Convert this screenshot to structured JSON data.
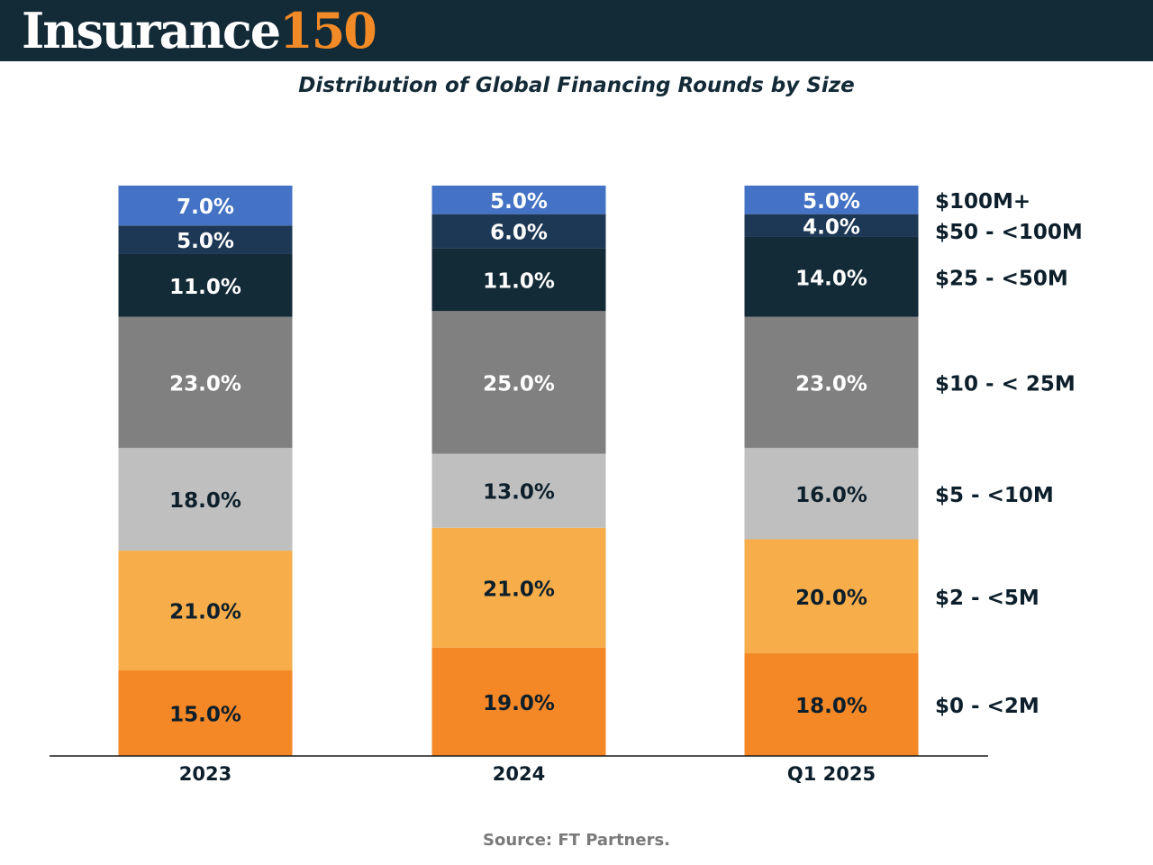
{
  "brand": {
    "name": "Insurance",
    "number": "150"
  },
  "source": "Source: FT Partners.",
  "chart_data": {
    "type": "bar",
    "stacked": true,
    "title": "Distribution of Global Financing Rounds by Size",
    "categories": [
      "2023",
      "2024",
      "Q1 2025"
    ],
    "ylim": [
      0,
      100
    ],
    "grid": false,
    "legend_position": "right",
    "series": [
      {
        "name": "$0 - <2M",
        "color": "#f48726",
        "label_color": "#0d1f2b",
        "values": [
          15,
          19,
          18
        ],
        "labels": [
          "15.0%",
          "19.0%",
          "18.0%"
        ]
      },
      {
        "name": "$2 - <5M",
        "color": "#f6ad4a",
        "label_color": "#0d1f2b",
        "values": [
          21,
          21,
          20
        ],
        "labels": [
          "21.0%",
          "21.0%",
          "20.0%"
        ]
      },
      {
        "name": "$5 - <10M",
        "color": "#bfbfbf",
        "label_color": "#0d1f2b",
        "values": [
          18,
          13,
          16
        ],
        "labels": [
          "18.0%",
          "13.0%",
          "16.0%"
        ]
      },
      {
        "name": "$10 - < 25M",
        "color": "#808080",
        "label_color": "#ffffff",
        "values": [
          23,
          25,
          23
        ],
        "labels": [
          "23.0%",
          "25.0%",
          "23.0%"
        ]
      },
      {
        "name": "$25 - <50M",
        "color": "#132a37",
        "label_color": "#ffffff",
        "values": [
          11,
          11,
          14
        ],
        "labels": [
          "11.0%",
          "11.0%",
          "14.0%"
        ]
      },
      {
        "name": "$50 - <100M",
        "color": "#1d3855",
        "label_color": "#ffffff",
        "values": [
          5,
          6,
          4
        ],
        "labels": [
          "5.0%",
          "6.0%",
          "4.0%"
        ]
      },
      {
        "name": "$100M+",
        "color": "#4472c4",
        "label_color": "#ffffff",
        "values": [
          7,
          5,
          5
        ],
        "labels": [
          "7.0%",
          "5.0%",
          "5.0%"
        ]
      }
    ]
  }
}
